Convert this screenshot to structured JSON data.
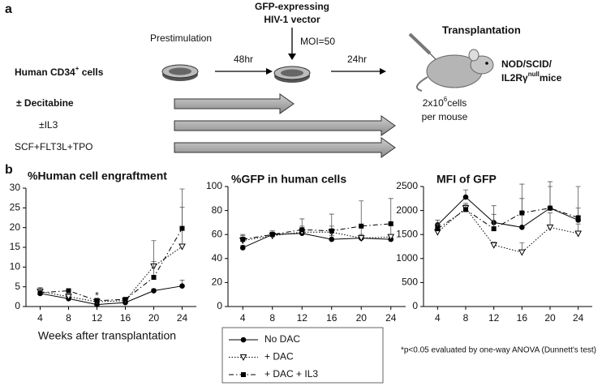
{
  "diagram": {
    "panel_label": "a",
    "prestimulation": "Prestimulation",
    "vector": [
      "GFP-expressing",
      "HIV-1 vector"
    ],
    "moi": "MOI=50",
    "transplantation": "Transplantation",
    "source": {
      "text": "Human CD34",
      "sup": "+",
      "rest": " cells"
    },
    "step1": "48hr",
    "step2": "24hr",
    "recipient": {
      "line1": "NOD/SCID/",
      "line2": "IL2Rγ",
      "sup": "null",
      "rest": "mice"
    },
    "dose": {
      "text": "2x10",
      "sup": "6",
      "rest": "cells",
      "line2": "per mouse"
    },
    "treatments": [
      "± Decitabine",
      "±IL3",
      "SCF+FLT3L+TPO"
    ]
  },
  "panel_b_label": "b",
  "footnote": "*p<0.05 evaluated by one-way ANOVA (Dunnett's test)",
  "chart_data": [
    {
      "type": "line",
      "title": "%Human cell engraftment",
      "x_label": "Weeks after transplantation",
      "x": [
        4,
        8,
        12,
        16,
        20,
        24
      ],
      "xlim": [
        2,
        26
      ],
      "xticks": [
        4,
        8,
        12,
        16,
        20,
        24
      ],
      "ylim": [
        0,
        30
      ],
      "yticks": [
        0,
        5,
        10,
        15,
        20,
        25,
        30
      ],
      "annotations": [
        {
          "text": "*",
          "x": 12,
          "y": 2.6
        }
      ],
      "series": [
        {
          "name": "No DAC",
          "values": [
            3.3,
            2.0,
            0.5,
            1.0,
            4.0,
            5.2
          ],
          "errors": [
            0.8,
            0.5,
            0.3,
            0.3,
            0.5,
            1.5
          ]
        },
        {
          "name": "+ DAC",
          "values": [
            3.8,
            2.5,
            1.2,
            1.5,
            10.2,
            15.2
          ],
          "errors": [
            1.0,
            0.7,
            0.5,
            0.5,
            6.5,
            10.0
          ]
        },
        {
          "name": "+ DAC + IL3",
          "values": [
            3.5,
            4.0,
            1.5,
            1.8,
            7.4,
            19.8
          ],
          "errors": [
            1.2,
            0.5,
            0.6,
            0.5,
            4.0,
            10.0
          ]
        }
      ]
    },
    {
      "type": "line",
      "title": "%GFP in human cells",
      "x": [
        4,
        8,
        12,
        16,
        20,
        24
      ],
      "xlim": [
        2,
        26
      ],
      "xticks": [
        4,
        8,
        12,
        16,
        20,
        24
      ],
      "ylim": [
        0,
        100
      ],
      "yticks": [
        0,
        20,
        40,
        60,
        80,
        100
      ],
      "series": [
        {
          "values": [
            49,
            60,
            61,
            56,
            57,
            56
          ],
          "errors": [
            2,
            3,
            3,
            3,
            3,
            3
          ]
        },
        {
          "values": [
            55,
            59,
            62,
            62,
            57,
            58
          ],
          "errors": [
            4,
            3,
            5,
            5,
            10,
            10
          ]
        },
        {
          "values": [
            56,
            60,
            64,
            63,
            67,
            69
          ],
          "errors": [
            4,
            3,
            9,
            14,
            21,
            21
          ]
        }
      ]
    },
    {
      "type": "line",
      "title": "MFI of GFP",
      "x": [
        4,
        8,
        12,
        16,
        20,
        24
      ],
      "xlim": [
        2,
        26
      ],
      "xticks": [
        4,
        8,
        12,
        16,
        20,
        24
      ],
      "ylim": [
        0,
        2500
      ],
      "yticks": [
        0,
        500,
        1000,
        1500,
        2000,
        2500
      ],
      "series": [
        {
          "values": [
            1700,
            2280,
            1750,
            1650,
            2050,
            1800
          ],
          "errors": [
            100,
            150,
            350,
            600,
            550,
            700
          ]
        },
        {
          "values": [
            1550,
            2050,
            1280,
            1130,
            1650,
            1520
          ],
          "errors": [
            80,
            100,
            60,
            200,
            300,
            200
          ]
        },
        {
          "values": [
            1620,
            2020,
            1620,
            1950,
            2050,
            1850
          ],
          "errors": [
            100,
            100,
            300,
            600,
            450,
            200
          ]
        }
      ]
    }
  ]
}
